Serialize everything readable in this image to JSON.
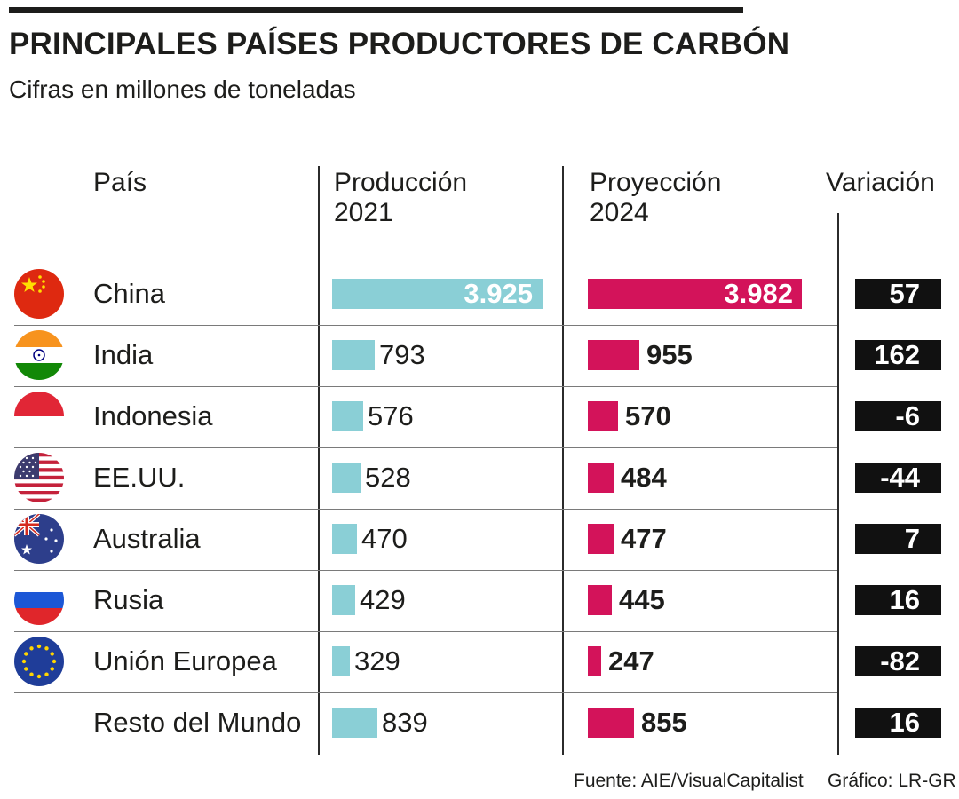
{
  "title": "PRINCIPALES PAÍSES PRODUCTORES DE CARBÓN",
  "subtitle": "Cifras en millones de toneladas",
  "headers": {
    "country": "País",
    "prod_line1": "Producción",
    "prod_line2": "2021",
    "proj_line1": "Proyección",
    "proj_line2": "2024",
    "variation": "Variación"
  },
  "rows": [
    {
      "country": "China",
      "prod": "3.925",
      "proj": "3.982",
      "var": "57",
      "flag": "china-flag-icon"
    },
    {
      "country": "India",
      "prod": "793",
      "proj": "955",
      "var": "162",
      "flag": "india-flag-icon"
    },
    {
      "country": "Indonesia",
      "prod": "576",
      "proj": "570",
      "var": "-6",
      "flag": "indonesia-flag-icon"
    },
    {
      "country": "EE.UU.",
      "prod": "528",
      "proj": "484",
      "var": "-44",
      "flag": "usa-flag-icon"
    },
    {
      "country": "Australia",
      "prod": "470",
      "proj": "477",
      "var": "7",
      "flag": "australia-flag-icon"
    },
    {
      "country": "Rusia",
      "prod": "429",
      "proj": "445",
      "var": "16",
      "flag": "russia-flag-icon"
    },
    {
      "country": "Unión Europea",
      "prod": "329",
      "proj": "247",
      "var": "-82",
      "flag": "eu-flag-icon"
    },
    {
      "country": "Resto del Mundo",
      "prod": "839",
      "proj": "855",
      "var": "16",
      "flag": ""
    }
  ],
  "colors": {
    "production_bar": "#8acfd6",
    "projection_bar": "#d3135a",
    "variation_box": "#111111"
  },
  "footer": {
    "source": "Fuente: AIE/VisualCapitalist",
    "credit": "Gráfico: LR-GR"
  },
  "chart_data": {
    "type": "table",
    "title": "PRINCIPALES PAÍSES PRODUCTORES DE CARBÓN",
    "subtitle": "Cifras en millones de toneladas",
    "columns": [
      "País",
      "Producción 2021",
      "Proyección 2024",
      "Variación"
    ],
    "categories": [
      "China",
      "India",
      "Indonesia",
      "EE.UU.",
      "Australia",
      "Rusia",
      "Unión Europea",
      "Resto del Mundo"
    ],
    "series": [
      {
        "name": "Producción 2021",
        "values": [
          3925,
          793,
          576,
          528,
          470,
          429,
          329,
          839
        ]
      },
      {
        "name": "Proyección 2024",
        "values": [
          3982,
          955,
          570,
          484,
          477,
          445,
          247,
          855
        ]
      },
      {
        "name": "Variación",
        "values": [
          57,
          162,
          -6,
          -44,
          7,
          16,
          -82,
          16
        ]
      }
    ]
  }
}
